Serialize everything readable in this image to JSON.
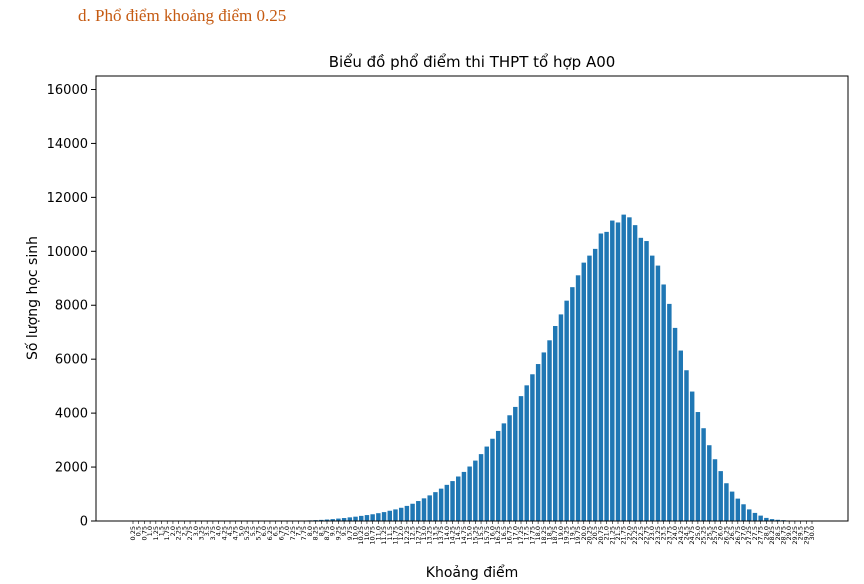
{
  "section_heading": "d.  Phổ điểm khoảng điểm 0.25",
  "chart_data": {
    "type": "bar",
    "title": "Biểu đồ phổ điểm thi THPT tổ hợp A00",
    "xlabel": "Khoảng điểm",
    "ylabel": "Số lượng học sinh",
    "ylim": [
      0,
      16500
    ],
    "yticks": [
      0,
      2000,
      4000,
      6000,
      8000,
      10000,
      12000,
      14000,
      16000
    ],
    "bar_color": "#1f77b4",
    "grid": false,
    "categories": [
      "0.25",
      "0.5",
      "0.75",
      "1.0",
      "1.25",
      "1.5",
      "1.75",
      "2.0",
      "2.25",
      "2.5",
      "2.75",
      "3.0",
      "3.25",
      "3.5",
      "3.75",
      "4.0",
      "4.25",
      "4.5",
      "4.75",
      "5.0",
      "5.25",
      "5.5",
      "5.75",
      "6.0",
      "6.25",
      "6.5",
      "6.75",
      "7.0",
      "7.25",
      "7.5",
      "7.75",
      "8.0",
      "8.25",
      "8.5",
      "8.75",
      "9.0",
      "9.25",
      "9.5",
      "9.75",
      "10.0",
      "10.25",
      "10.5",
      "10.75",
      "11.0",
      "11.25",
      "11.5",
      "11.75",
      "12.0",
      "12.25",
      "12.5",
      "12.75",
      "13.0",
      "13.25",
      "13.5",
      "13.75",
      "14.0",
      "14.25",
      "14.5",
      "14.75",
      "15.0",
      "15.25",
      "15.5",
      "15.75",
      "16.0",
      "16.25",
      "16.5",
      "16.75",
      "17.0",
      "17.25",
      "17.5",
      "17.75",
      "18.0",
      "18.25",
      "18.5",
      "18.75",
      "19.0",
      "19.25",
      "19.5",
      "19.75",
      "20.0",
      "20.25",
      "20.5",
      "20.75",
      "21.0",
      "21.25",
      "21.5",
      "21.75",
      "22.0",
      "22.25",
      "22.5",
      "22.75",
      "23.0",
      "23.25",
      "23.5",
      "23.75",
      "24.0",
      "24.25",
      "24.5",
      "24.75",
      "25.0",
      "25.25",
      "25.5",
      "25.75",
      "26.0",
      "26.25",
      "26.5",
      "26.75",
      "27.0",
      "27.25",
      "27.5",
      "27.75",
      "28.0",
      "28.25",
      "28.5",
      "28.75",
      "29.0",
      "29.25",
      "29.5",
      "29.75",
      "30.0"
    ],
    "values": [
      0,
      0,
      0,
      0,
      0,
      0,
      0,
      0,
      0,
      0,
      0,
      0,
      0,
      0,
      0,
      0,
      0,
      0,
      0,
      0,
      0,
      1,
      1,
      2,
      3,
      4,
      6,
      8,
      10,
      14,
      18,
      24,
      32,
      42,
      55,
      70,
      90,
      110,
      135,
      160,
      190,
      220,
      250,
      290,
      330,
      380,
      430,
      490,
      560,
      640,
      740,
      840,
      950,
      1070,
      1200,
      1340,
      1480,
      1650,
      1820,
      2020,
      2240,
      2480,
      2760,
      3050,
      3340,
      3620,
      3920,
      4230,
      4630,
      5030,
      5440,
      5820,
      6250,
      6700,
      7230,
      7660,
      8170,
      8670,
      9110,
      9580,
      9840,
      10090,
      10660,
      10720,
      11140,
      11070,
      11360,
      11260,
      10970,
      10500,
      10380,
      9840,
      9470,
      8770,
      8050,
      7160,
      6320,
      5590,
      4800,
      4040,
      3440,
      2810,
      2290,
      1850,
      1400,
      1090,
      830,
      620,
      430,
      300,
      200,
      115,
      70,
      45,
      30,
      18,
      10,
      5,
      2,
      0
    ]
  }
}
